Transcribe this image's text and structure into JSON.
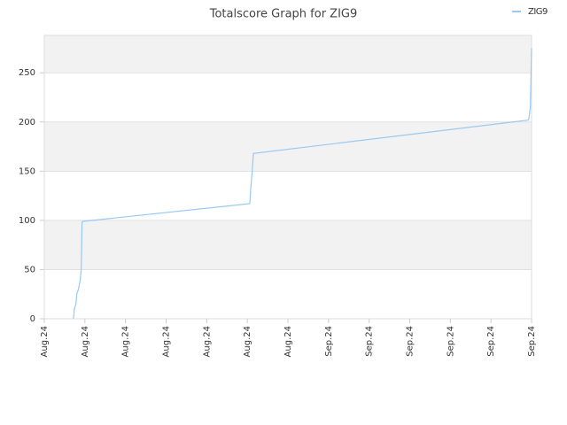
{
  "chart_data": {
    "type": "line",
    "title": "Totalscore Graph for ZIG9",
    "x": [
      0.72,
      0.74,
      0.78,
      0.8,
      0.84,
      0.88,
      0.91,
      0.93,
      0.95,
      5.06,
      5.08,
      5.12,
      5.15,
      11.93,
      11.97,
      12
    ],
    "series": [
      {
        "name": "ZIG9",
        "color": "#99c9f2",
        "values": [
          0,
          10,
          15,
          25,
          30,
          38,
          50,
          98,
          99,
          117,
          130,
          150,
          168,
          202,
          215,
          275
        ]
      }
    ],
    "xlim": [
      0,
      12
    ],
    "xticks": [
      {
        "value": 0,
        "label": "Aug.24"
      },
      {
        "value": 1,
        "label": "Aug.24"
      },
      {
        "value": 2,
        "label": "Aug.24"
      },
      {
        "value": 3,
        "label": "Aug.24"
      },
      {
        "value": 4,
        "label": "Aug.24"
      },
      {
        "value": 5,
        "label": "Aug.24"
      },
      {
        "value": 6,
        "label": "Aug.24"
      },
      {
        "value": 7,
        "label": "Sep.24"
      },
      {
        "value": 8,
        "label": "Sep.24"
      },
      {
        "value": 9,
        "label": "Sep.24"
      },
      {
        "value": 10,
        "label": "Sep.24"
      },
      {
        "value": 11,
        "label": "Sep.24"
      },
      {
        "value": 12,
        "label": "Sep.24"
      }
    ],
    "ylim": [
      0,
      288
    ],
    "yticks": [
      0,
      50,
      100,
      150,
      200,
      250
    ],
    "grid": true,
    "legend": "top-right"
  }
}
